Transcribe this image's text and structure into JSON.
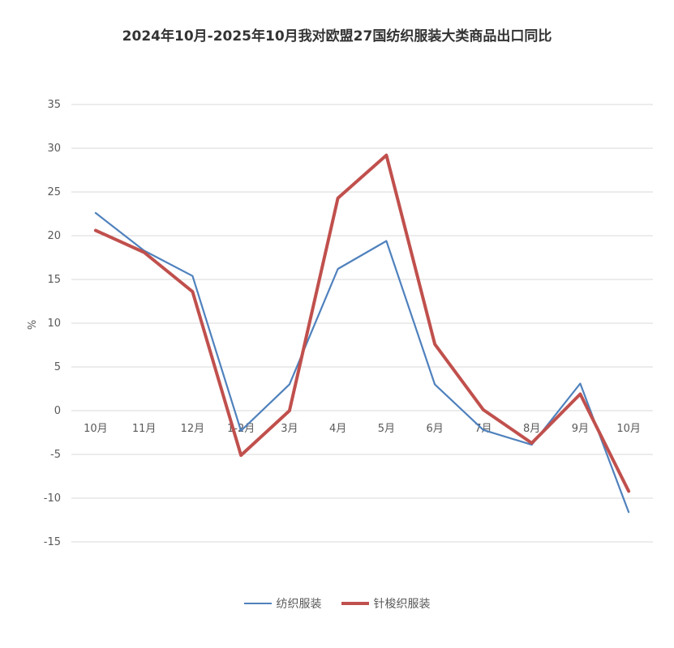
{
  "chart_data": {
    "type": "line",
    "title": "2024年10月-2025年10月我对欧盟27国纺织服装大类商品出口同比",
    "ylabel": "%",
    "xlabel": "",
    "categories": [
      "10月",
      "11月",
      "12月",
      "1-2月",
      "3月",
      "4月",
      "5月",
      "6月",
      "7月",
      "8月",
      "9月",
      "10月"
    ],
    "ylim": [
      -15,
      35
    ],
    "yticks": [
      35,
      30,
      25,
      20,
      15,
      10,
      5,
      0,
      -5,
      -10,
      -15
    ],
    "grid": true,
    "legend_position": "bottom",
    "series": [
      {
        "name": "纺织服装",
        "color": "#4f81bd",
        "values": [
          22.6,
          18.3,
          15.4,
          -2.3,
          3.0,
          16.2,
          19.4,
          3.0,
          -2.2,
          -3.9,
          3.1,
          -11.6
        ]
      },
      {
        "name": "针梭织服装",
        "color": "#c0504d",
        "values": [
          20.6,
          18.1,
          13.6,
          -5.1,
          0.0,
          24.3,
          29.2,
          7.6,
          0.1,
          -3.7,
          1.9,
          -9.2
        ]
      }
    ]
  }
}
